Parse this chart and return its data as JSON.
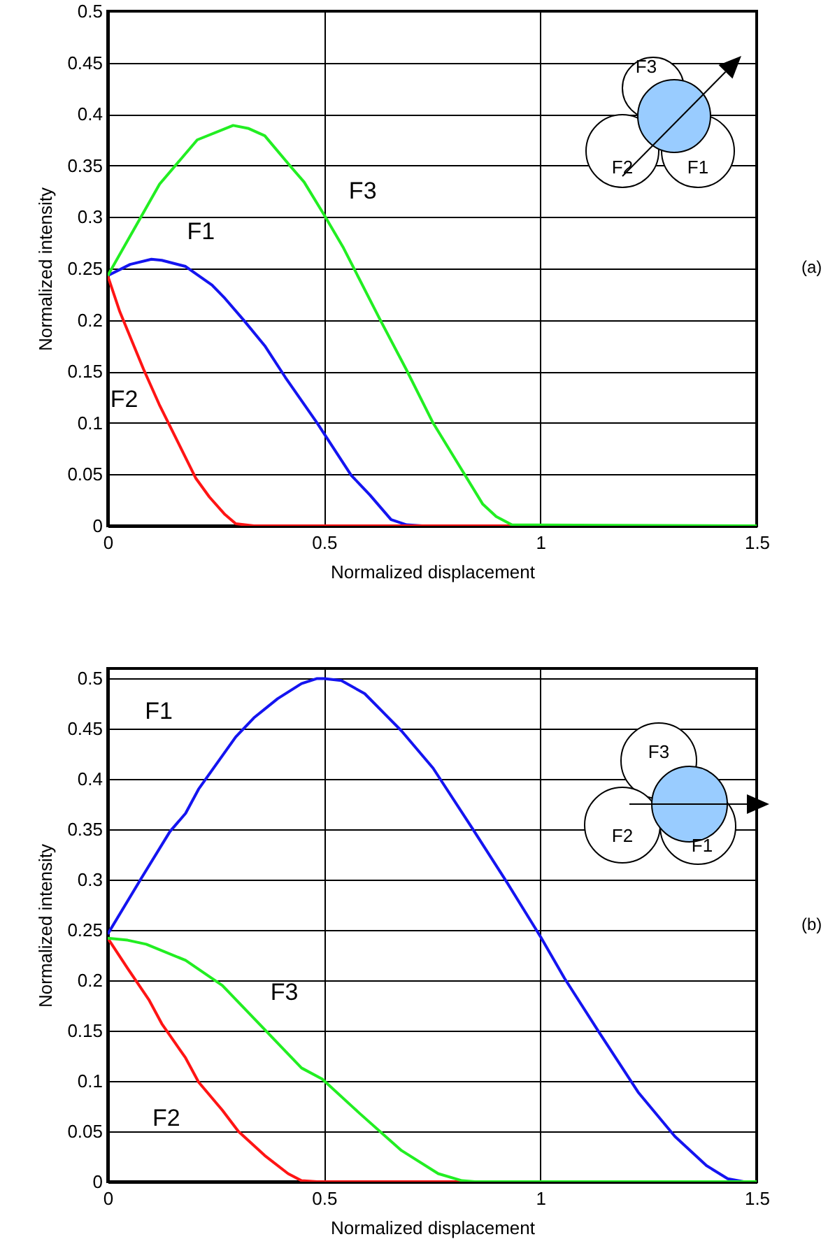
{
  "chart_data": [
    {
      "type": "line",
      "xlabel": "Normalized displacement",
      "ylabel": "Normalized intensity",
      "annotations": [
        "(a)"
      ],
      "xlim": [
        0,
        1.5
      ],
      "ylim": [
        0,
        0.5
      ],
      "xticks": [
        0,
        0.5,
        1,
        1.5
      ],
      "yticks": [
        0,
        0.05,
        0.1,
        0.15,
        0.2,
        0.25,
        0.3,
        0.35,
        0.4,
        0.45,
        0.5
      ],
      "grid": true,
      "series": [
        {
          "name": "F1",
          "color": "#1414f0",
          "x": [
            0,
            0.052,
            0.101,
            0.125,
            0.18,
            0.241,
            0.271,
            0.314,
            0.363,
            0.411,
            0.484,
            0.563,
            0.606,
            0.655,
            0.691,
            0.727,
            1.5
          ],
          "values": [
            0.243,
            0.254,
            0.259,
            0.258,
            0.252,
            0.234,
            0.221,
            0.2,
            0.175,
            0.144,
            0.1,
            0.049,
            0.03,
            0.006,
            0.001,
            0,
            0
          ]
        },
        {
          "name": "F2",
          "color": "#ff1414",
          "x": [
            0,
            0.028,
            0.083,
            0.119,
            0.204,
            0.235,
            0.271,
            0.296,
            0.338,
            1.5
          ],
          "values": [
            0.243,
            0.208,
            0.152,
            0.118,
            0.046,
            0.028,
            0.011,
            0.002,
            0,
            0
          ]
        },
        {
          "name": "F3",
          "color": "#22ee22",
          "x": [
            0,
            0.12,
            0.207,
            0.29,
            0.326,
            0.363,
            0.423,
            0.454,
            0.499,
            0.545,
            0.63,
            0.69,
            0.752,
            0.819,
            0.867,
            0.898,
            0.934,
            1.5
          ],
          "values": [
            0.243,
            0.332,
            0.375,
            0.389,
            0.386,
            0.379,
            0.349,
            0.334,
            0.303,
            0.27,
            0.2,
            0.152,
            0.1,
            0.054,
            0.021,
            0.009,
            0.001,
            0
          ]
        }
      ]
    },
    {
      "type": "line",
      "xlabel": "Normalized displacement",
      "ylabel": "Normalized intensity",
      "annotations": [
        "(b)"
      ],
      "xlim": [
        0,
        1.5
      ],
      "ylim": [
        0,
        0.51
      ],
      "xticks": [
        0,
        0.5,
        1,
        1.5
      ],
      "yticks": [
        0,
        0.05,
        0.1,
        0.15,
        0.2,
        0.25,
        0.3,
        0.35,
        0.4,
        0.45,
        0.5
      ],
      "grid": true,
      "series": [
        {
          "name": "F1",
          "color": "#1414f0",
          "x": [
            0,
            0.077,
            0.144,
            0.18,
            0.21,
            0.296,
            0.338,
            0.393,
            0.448,
            0.484,
            0.5,
            0.54,
            0.594,
            0.679,
            0.752,
            0.843,
            0.922,
            1.001,
            1.056,
            1.135,
            1.226,
            1.311,
            1.384,
            1.433,
            1.47,
            1.5
          ],
          "values": [
            0.246,
            0.301,
            0.348,
            0.366,
            0.39,
            0.442,
            0.461,
            0.48,
            0.495,
            0.5,
            0.5,
            0.498,
            0.485,
            0.448,
            0.411,
            0.351,
            0.298,
            0.243,
            0.202,
            0.149,
            0.089,
            0.045,
            0.016,
            0.003,
            0,
            0
          ]
        },
        {
          "name": "F2",
          "color": "#ff1414",
          "x": [
            0,
            0.046,
            0.095,
            0.125,
            0.18,
            0.21,
            0.265,
            0.302,
            0.363,
            0.417,
            0.448,
            0.484,
            1.5
          ],
          "values": [
            0.242,
            0.212,
            0.181,
            0.157,
            0.123,
            0.099,
            0.071,
            0.05,
            0.026,
            0.008,
            0.001,
            0,
            0
          ]
        },
        {
          "name": "F3",
          "color": "#22ee22",
          "x": [
            0,
            0.046,
            0.089,
            0.18,
            0.265,
            0.35,
            0.448,
            0.496,
            0.582,
            0.679,
            0.764,
            0.819,
            0.849,
            1.5
          ],
          "values": [
            0.242,
            0.24,
            0.236,
            0.22,
            0.195,
            0.157,
            0.113,
            0.102,
            0.068,
            0.031,
            0.008,
            0.001,
            0,
            0
          ]
        }
      ]
    }
  ]
}
